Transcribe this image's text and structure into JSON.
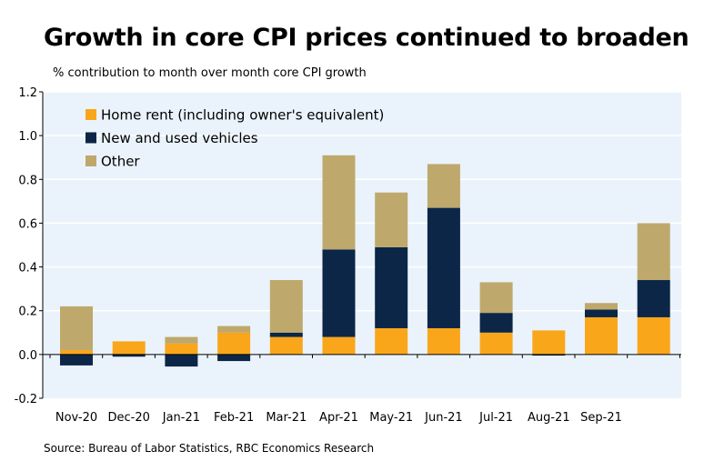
{
  "title": "Growth in core CPI prices continued to broaden",
  "subtitle": "% contribution to month over month core CPI growth",
  "source": "Source: Bureau of Labor Statistics, RBC Economics Research",
  "colors": {
    "plot_bg": "#eaf3fb",
    "home_rent": "#f9a61b",
    "vehicles": "#0b2647",
    "other": "#bea86c"
  },
  "chart_data": {
    "type": "bar",
    "stacked": true,
    "title": "Growth in core CPI prices continued to broaden",
    "ylabel": "% contribution to month over month core CPI growth",
    "ylim": [
      -0.2,
      1.2
    ],
    "yticks": [
      -0.2,
      0.0,
      0.2,
      0.4,
      0.6,
      0.8,
      1.0,
      1.2
    ],
    "ytick_labels": [
      "-0.2",
      "0.0",
      "0.2",
      "0.4",
      "0.6",
      "0.8",
      "1.0",
      "1.2"
    ],
    "grid": "horizontal",
    "legend_position": "top-left",
    "categories": [
      "Nov-20",
      "Dec-20",
      "Jan-21",
      "Feb-21",
      "Mar-21",
      "Apr-21",
      "May-21",
      "Jun-21",
      "Jul-21",
      "Aug-21",
      "Sep-21",
      ""
    ],
    "series": [
      {
        "name": "Home rent (including owner's equivalent)",
        "color_key": "home_rent",
        "values": [
          0.02,
          0.06,
          0.05,
          0.1,
          0.08,
          0.08,
          0.12,
          0.12,
          0.1,
          0.11,
          0.17,
          0.17
        ]
      },
      {
        "name": "New and used vehicles",
        "color_key": "vehicles",
        "values": [
          -0.05,
          -0.01,
          -0.055,
          -0.03,
          0.02,
          0.4,
          0.37,
          0.55,
          0.09,
          -0.005,
          0.035,
          0.17
        ]
      },
      {
        "name": "Other",
        "color_key": "other",
        "values": [
          0.2,
          0.0,
          0.03,
          0.03,
          0.24,
          0.43,
          0.25,
          0.2,
          0.14,
          0.0,
          0.03,
          0.26
        ]
      }
    ]
  }
}
